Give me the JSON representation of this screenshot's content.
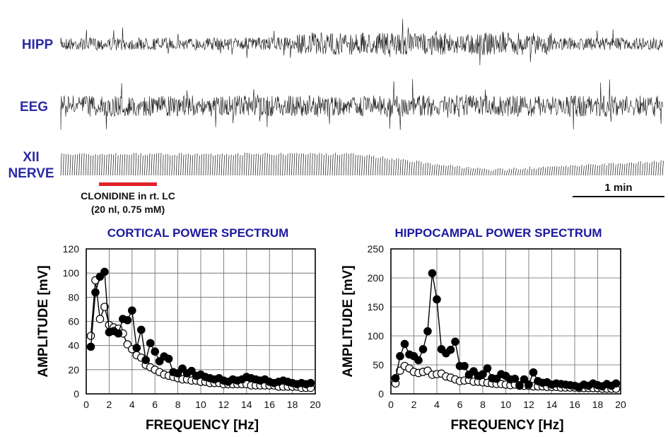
{
  "traces": {
    "hipp_label": "HIPP",
    "eeg_label": "EEG",
    "xii_label_line1": "XII",
    "xii_label_line2": "NERVE",
    "drug_line1": "CLONIDINE in rt. LC",
    "drug_line2": "(20 nl, 0.75 mM)",
    "scale_label": "1 min",
    "drug_bar_color": "#e0202a",
    "label_color": "#2a2aa6"
  },
  "chart_data": [
    {
      "type": "line",
      "title": "CORTICAL POWER SPECTRUM",
      "xlabel": "FREQUENCY [Hz]",
      "ylabel": "AMPLITUDE [mV]",
      "xlim": [
        0,
        20
      ],
      "ylim": [
        0,
        120
      ],
      "xticks": [
        0,
        2,
        4,
        6,
        8,
        10,
        12,
        14,
        16,
        18,
        20
      ],
      "yticks": [
        0,
        20,
        40,
        60,
        80,
        100,
        120
      ],
      "grid": true,
      "series": [
        {
          "marker": "filled-circle",
          "x": [
            0.4,
            0.8,
            1.2,
            1.6,
            2.0,
            2.4,
            2.8,
            3.2,
            3.6,
            4.0,
            4.4,
            4.8,
            5.2,
            5.6,
            6.0,
            6.4,
            6.8,
            7.2,
            7.6,
            8.0,
            8.4,
            8.8,
            9.2,
            9.6,
            10.0,
            10.4,
            10.8,
            11.2,
            11.6,
            12.0,
            12.4,
            12.8,
            13.2,
            13.6,
            14.0,
            14.4,
            14.8,
            15.2,
            15.6,
            16.0,
            16.4,
            16.8,
            17.2,
            17.6,
            18.0,
            18.4,
            18.8,
            19.2,
            19.6
          ],
          "y": [
            39,
            84,
            97,
            101,
            51,
            52,
            50,
            62,
            61,
            69,
            38,
            53,
            28,
            42,
            35,
            27,
            31,
            29,
            18,
            17,
            21,
            17,
            19,
            15,
            16,
            14,
            13,
            12,
            13,
            11,
            10,
            12,
            11,
            12,
            14,
            13,
            12,
            11,
            12,
            10,
            9,
            10,
            11,
            10,
            9,
            8,
            9,
            8,
            9
          ]
        },
        {
          "marker": "open-circle",
          "x": [
            0.4,
            0.8,
            1.2,
            1.6,
            2.0,
            2.4,
            2.8,
            3.2,
            3.6,
            4.0,
            4.4,
            4.8,
            5.2,
            5.6,
            6.0,
            6.4,
            6.8,
            7.2,
            7.6,
            8.0,
            8.4,
            8.8,
            9.2,
            9.6,
            10.0,
            10.4,
            10.8,
            11.2,
            11.6,
            12.0,
            12.4,
            12.8,
            13.2,
            13.6,
            14.0,
            14.4,
            14.8,
            15.2,
            15.6,
            16.0,
            16.4,
            16.8,
            17.2,
            17.6,
            18.0,
            18.4,
            18.8,
            19.2,
            19.6
          ],
          "y": [
            48,
            94,
            62,
            72,
            57,
            55,
            54,
            50,
            41,
            37,
            32,
            30,
            24,
            22,
            20,
            18,
            16,
            15,
            14,
            13,
            12,
            12,
            11,
            11,
            10,
            10,
            9,
            9,
            9,
            8,
            8,
            8,
            8,
            8,
            8,
            7,
            7,
            7,
            7,
            7,
            7,
            6,
            6,
            6,
            6,
            6,
            5,
            5,
            5
          ]
        }
      ]
    },
    {
      "type": "line",
      "title": "HIPPOCAMPAL POWER SPECTRUM",
      "xlabel": "FREQUENCY [Hz]",
      "ylabel": "AMPLITUDE [mV]",
      "xlim": [
        0,
        20
      ],
      "ylim": [
        0,
        250
      ],
      "xticks": [
        0,
        2,
        4,
        6,
        8,
        10,
        12,
        14,
        16,
        18,
        20
      ],
      "yticks": [
        0,
        50,
        100,
        150,
        200,
        250
      ],
      "grid": true,
      "series": [
        {
          "marker": "filled-circle",
          "x": [
            0.4,
            0.8,
            1.2,
            1.6,
            2.0,
            2.4,
            2.8,
            3.2,
            3.6,
            4.0,
            4.4,
            4.8,
            5.2,
            5.6,
            6.0,
            6.4,
            6.8,
            7.2,
            7.6,
            8.0,
            8.4,
            8.8,
            9.2,
            9.6,
            10.0,
            10.4,
            10.8,
            11.2,
            11.6,
            12.0,
            12.4,
            12.8,
            13.2,
            13.6,
            14.0,
            14.4,
            14.8,
            15.2,
            15.6,
            16.0,
            16.4,
            16.8,
            17.2,
            17.6,
            18.0,
            18.4,
            18.8,
            19.2,
            19.6
          ],
          "y": [
            27,
            65,
            86,
            68,
            65,
            58,
            77,
            108,
            208,
            163,
            77,
            70,
            76,
            90,
            48,
            48,
            33,
            39,
            31,
            34,
            44,
            27,
            26,
            34,
            31,
            25,
            26,
            14,
            25,
            16,
            37,
            22,
            19,
            20,
            16,
            18,
            17,
            16,
            15,
            14,
            12,
            16,
            14,
            18,
            15,
            13,
            17,
            14,
            18
          ]
        },
        {
          "marker": "open-circle",
          "x": [
            0.4,
            0.8,
            1.2,
            1.6,
            2.0,
            2.4,
            2.8,
            3.2,
            3.6,
            4.0,
            4.4,
            4.8,
            5.2,
            5.6,
            6.0,
            6.4,
            6.8,
            7.2,
            7.6,
            8.0,
            8.4,
            8.8,
            9.2,
            9.6,
            10.0,
            10.4,
            10.8,
            11.2,
            11.6,
            12.0,
            12.4,
            12.8,
            13.2,
            13.6,
            14.0,
            14.4,
            14.8,
            15.2,
            15.6,
            16.0,
            16.4,
            16.8,
            17.2,
            17.6,
            18.0,
            18.4,
            18.8,
            19.2,
            19.6
          ],
          "y": [
            18,
            40,
            48,
            44,
            38,
            36,
            38,
            40,
            33,
            34,
            35,
            30,
            28,
            25,
            22,
            23,
            24,
            21,
            21,
            20,
            19,
            18,
            17,
            17,
            16,
            15,
            16,
            15,
            14,
            14,
            13,
            13,
            13,
            12,
            12,
            12,
            11,
            11,
            11,
            11,
            10,
            10,
            10,
            10,
            10,
            9,
            9,
            9,
            9
          ]
        }
      ]
    }
  ]
}
